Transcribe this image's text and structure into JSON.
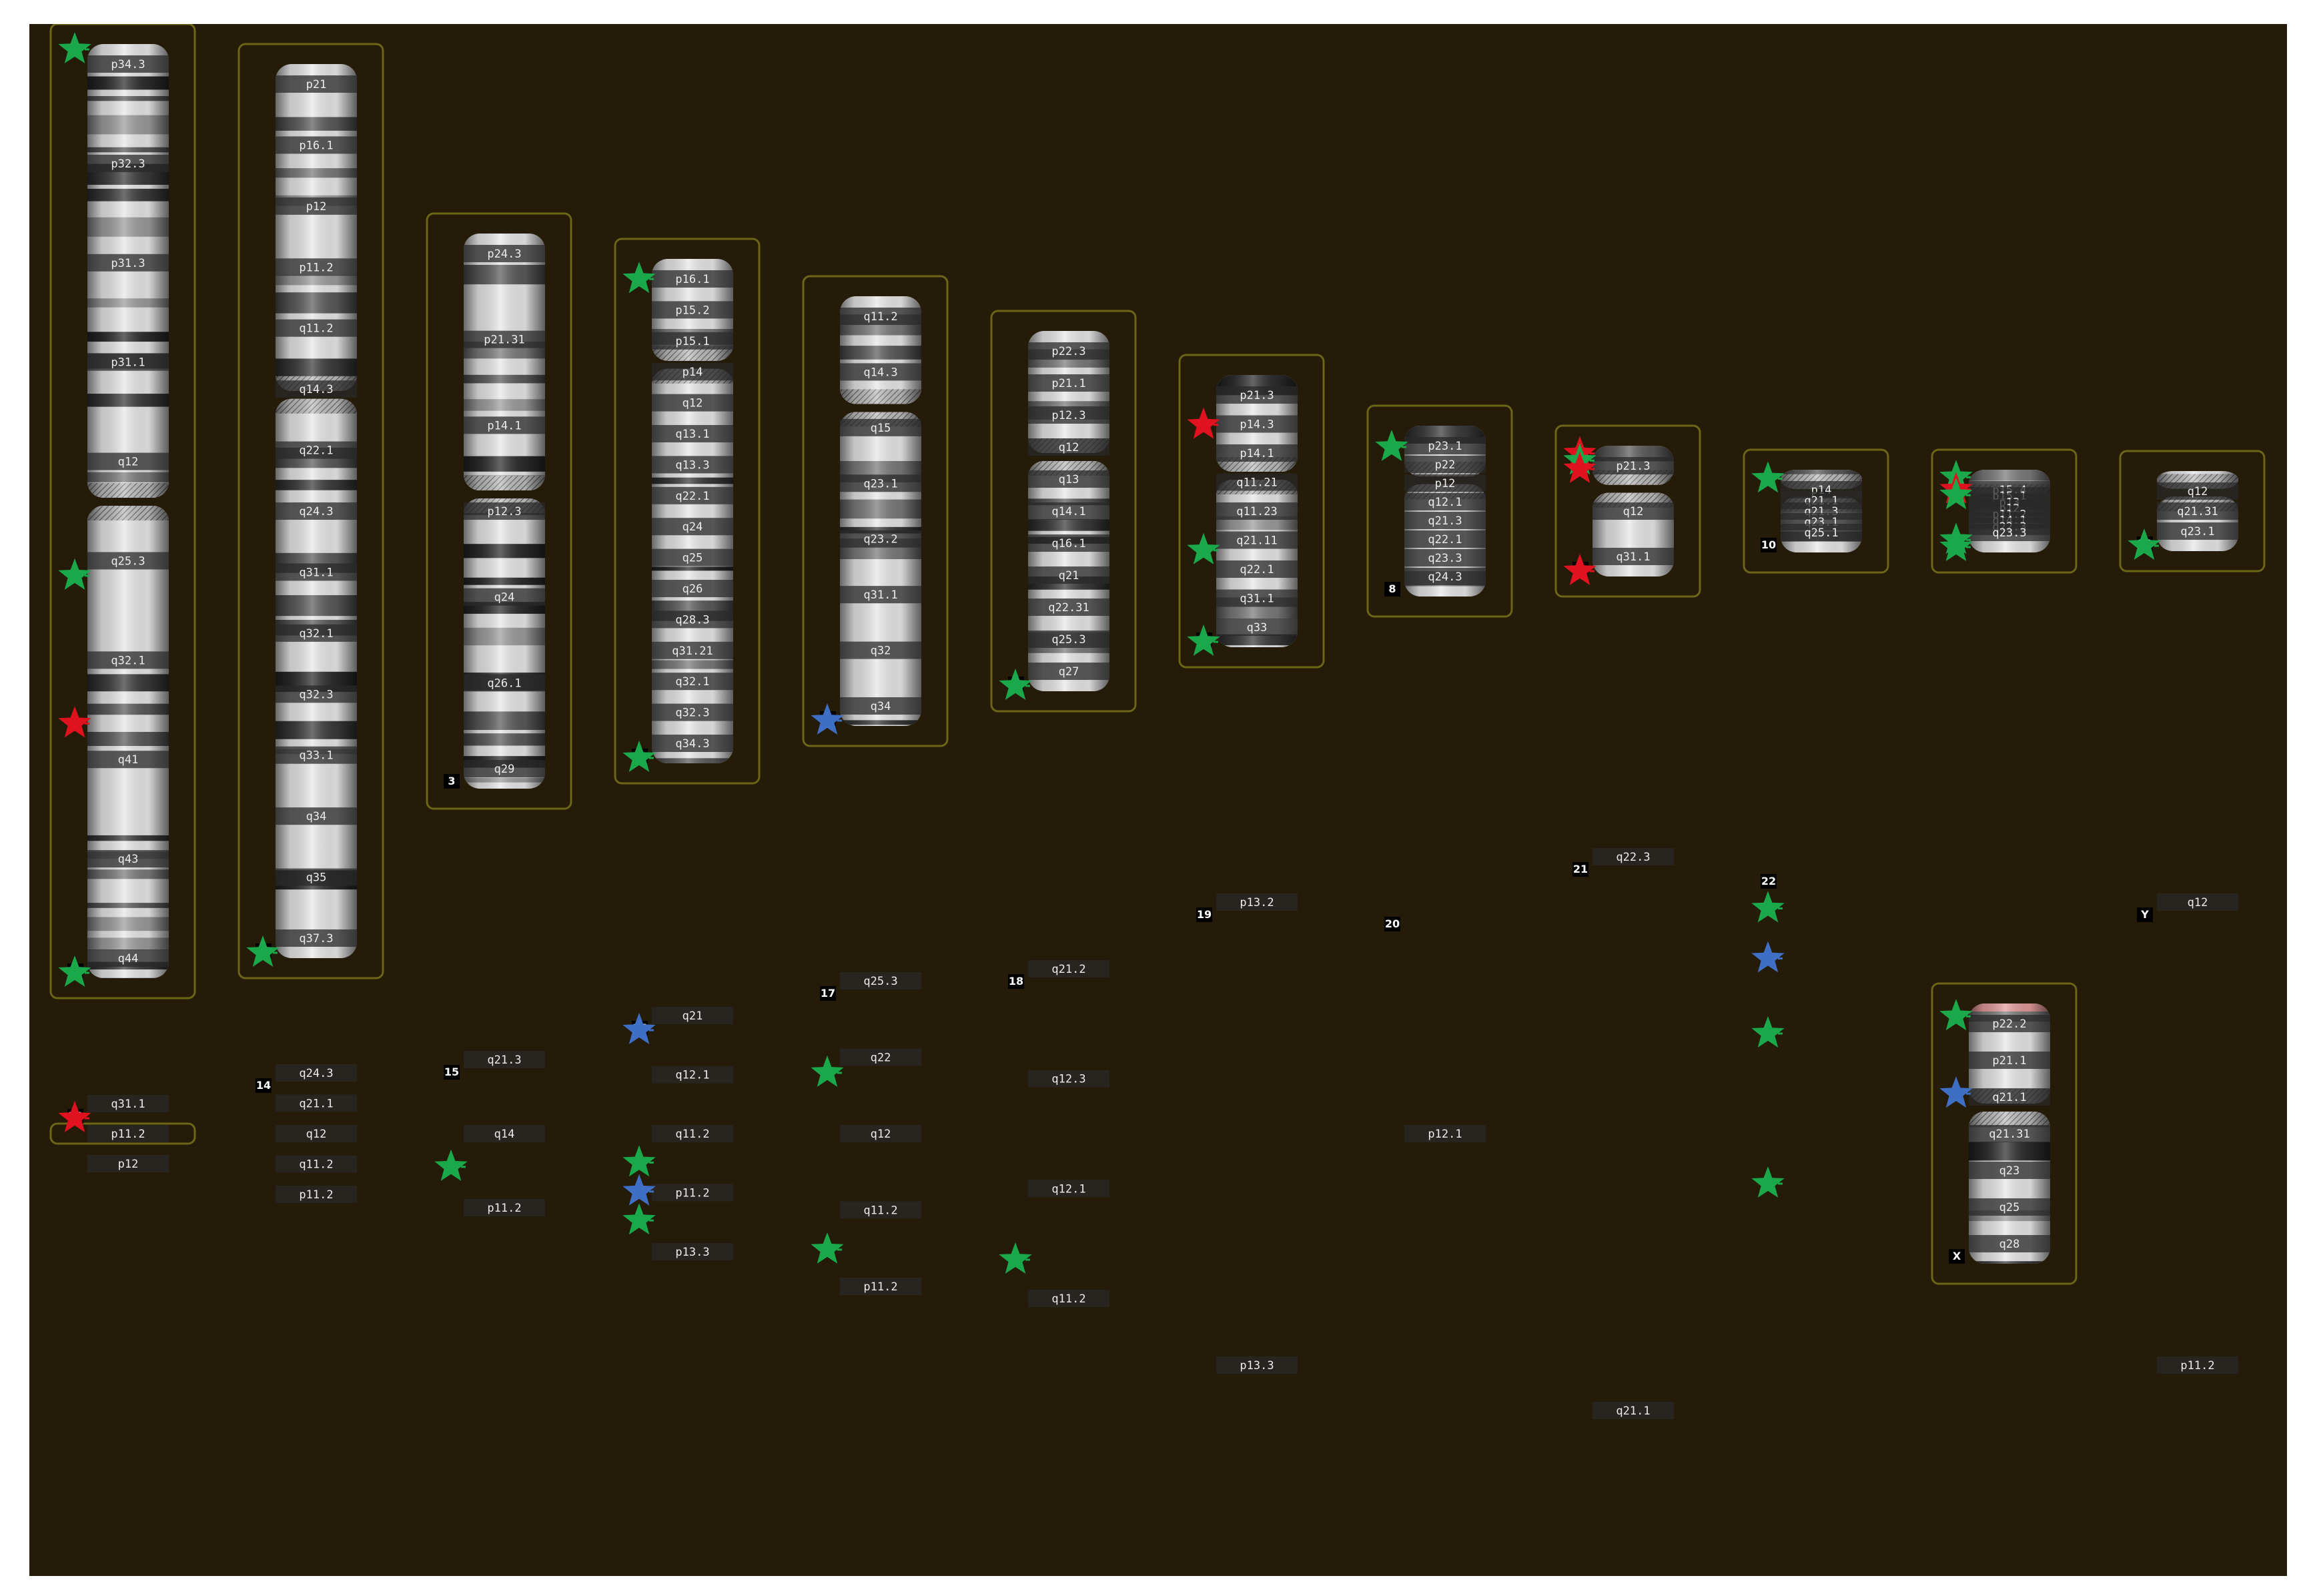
{
  "colors": {
    "background": "#241b08",
    "frame": "#6b6517",
    "star_green": "#1aa84a",
    "star_red": "#e0121f",
    "star_blue": "#3f6fc4",
    "telomere_pink": "#e39a9a"
  },
  "chromosomes": [
    {
      "id": "1",
      "bands": [
        "p34.3",
        "p32.3",
        "p31.3",
        "p31.1",
        "q12",
        "q25.3",
        "q32.1",
        "q41",
        "q43",
        "q44"
      ],
      "markers": [
        {
          "color": "green",
          "pos": 0.0
        },
        {
          "color": "green",
          "pos": 0.57
        },
        {
          "color": "red",
          "pos": 0.73
        },
        {
          "color": "green",
          "pos": 1.0
        }
      ]
    },
    {
      "id": "2",
      "bands": [
        "p21",
        "p16.1",
        "p12",
        "p11.2",
        "q11.2",
        "q14.3",
        "q22.1",
        "q24.3",
        "q31.1",
        "q32.1",
        "q32.3",
        "q33.1",
        "q34",
        "q35",
        "q37.3"
      ],
      "markers": [
        {
          "color": "green",
          "pos": 1.0
        }
      ]
    },
    {
      "id": "3",
      "bands": [
        "p24.3",
        "p21.31",
        "p14.1",
        "p12.3",
        "q24",
        "q26.1",
        "q29"
      ],
      "markers": []
    },
    {
      "id": "4",
      "bands": [
        "p16.1",
        "p15.2",
        "p15.1",
        "p14",
        "q12",
        "q13.1",
        "q13.3",
        "q22.1",
        "q24",
        "q25",
        "q26",
        "q28.3",
        "q31.21",
        "q32.1",
        "q32.3",
        "q34.3"
      ],
      "markers": [
        {
          "color": "green",
          "pos": 0.03
        },
        {
          "color": "green",
          "pos": 1.0
        }
      ]
    },
    {
      "id": "5",
      "bands": [
        "q11.2",
        "q14.3",
        "q15",
        "q23.1",
        "q23.2",
        "q31.1",
        "q32",
        "q34"
      ],
      "markers": [
        {
          "color": "blue",
          "pos": 1.0
        }
      ]
    },
    {
      "id": "6",
      "bands": [
        "p22.3",
        "p21.1",
        "p12.3",
        "q12",
        "q13",
        "q14.1",
        "q16.1",
        "q21",
        "q22.31",
        "q25.3",
        "q27"
      ],
      "markers": [
        {
          "color": "green",
          "pos": 1.0
        }
      ]
    },
    {
      "id": "7",
      "bands": [
        "p21.3",
        "p14.3",
        "p14.1",
        "q11.21",
        "q11.23",
        "q21.11",
        "q22.1",
        "q31.1",
        "q33"
      ],
      "markers": [
        {
          "color": "red",
          "pos": 0.17
        },
        {
          "color": "green",
          "pos": 0.65
        },
        {
          "color": "green",
          "pos": 1.0
        }
      ]
    },
    {
      "id": "8",
      "bands": [
        "p23.1",
        "p22",
        "p12",
        "q12.1",
        "q21.3",
        "q22.1",
        "q23.3",
        "q24.3"
      ],
      "markers": [
        {
          "color": "green",
          "pos": 0.1
        }
      ]
    },
    {
      "id": "9",
      "bands": [
        "p21.3",
        "q12",
        "q31.1"
      ],
      "markers": [
        {
          "color": "red",
          "pos": 0.02
        },
        {
          "color": "green",
          "pos": 0.08
        },
        {
          "color": "red",
          "pos": 0.15
        },
        {
          "color": "red",
          "pos": 1.0
        }
      ]
    },
    {
      "id": "10",
      "bands": [
        "p14",
        "q21.1",
        "q21.3",
        "q23.1",
        "q25.1"
      ],
      "markers": [
        {
          "color": "green",
          "pos": 0.05
        }
      ]
    },
    {
      "id": "11",
      "bands": [
        "p15.4",
        "p15.1",
        "p13",
        "p12",
        "p11.2",
        "q14.1",
        "q22.3",
        "q23.3"
      ],
      "markers": [
        {
          "color": "green",
          "pos": 0.03
        },
        {
          "color": "red",
          "pos": 0.2
        },
        {
          "color": "green",
          "pos": 0.28
        },
        {
          "color": "green",
          "pos": 0.9
        },
        {
          "color": "green",
          "pos": 1.0
        }
      ]
    },
    {
      "id": "12",
      "bands": [
        "q12",
        "q21.31",
        "q23.1"
      ],
      "markers": [
        {
          "color": "green",
          "pos": 1.0
        }
      ]
    },
    {
      "id": "13",
      "bands": [
        "p12",
        "p11.2",
        "q31.1"
      ],
      "markers": [
        {
          "color": "red",
          "pos": 1.0
        }
      ]
    },
    {
      "id": "14",
      "bands": [
        "p11.2",
        "q11.2",
        "q12",
        "q21.1",
        "q24.3"
      ],
      "markers": []
    },
    {
      "id": "15",
      "bands": [
        "p11.2",
        "q14",
        "q21.3"
      ],
      "markers": [
        {
          "color": "green",
          "pos": 0.22
        }
      ]
    },
    {
      "id": "16",
      "bands": [
        "p13.3",
        "p11.2",
        "q11.2",
        "q12.1",
        "q21"
      ],
      "markers": [
        {
          "color": "green",
          "pos": 0.08
        },
        {
          "color": "blue",
          "pos": 0.22
        },
        {
          "color": "green",
          "pos": 0.36
        },
        {
          "color": "blue",
          "pos": 1.0
        }
      ]
    },
    {
      "id": "17",
      "bands": [
        "p11.2",
        "q11.2",
        "q12",
        "q22",
        "q25.3"
      ],
      "markers": [
        {
          "color": "green",
          "pos": 0.08
        },
        {
          "color": "green",
          "pos": 0.72
        }
      ]
    },
    {
      "id": "18",
      "bands": [
        "q11.2",
        "q12.1",
        "q12.3",
        "q21.2"
      ],
      "markers": [
        {
          "color": "green",
          "pos": 0.08
        }
      ]
    },
    {
      "id": "19",
      "bands": [
        "p13.3",
        "p13.2"
      ],
      "markers": []
    },
    {
      "id": "20",
      "bands": [
        "p12.1"
      ],
      "markers": []
    },
    {
      "id": "21",
      "bands": [
        "q21.1",
        "q22.3"
      ],
      "markers": []
    },
    {
      "id": "22",
      "bands": [],
      "markers": [
        {
          "color": "green",
          "pos": 0.4
        },
        {
          "color": "green",
          "pos": 0.7
        },
        {
          "color": "blue",
          "pos": 0.85
        },
        {
          "color": "green",
          "pos": 0.95
        }
      ]
    },
    {
      "id": "X",
      "bands": [
        "p22.2",
        "p21.1",
        "q21.1",
        "q21.31",
        "q23",
        "q25",
        "q28"
      ],
      "markers": [
        {
          "color": "green",
          "pos": 0.03
        },
        {
          "color": "blue",
          "pos": 0.34
        }
      ]
    },
    {
      "id": "Y",
      "bands": [
        "p11.2",
        "q12"
      ],
      "markers": []
    }
  ]
}
